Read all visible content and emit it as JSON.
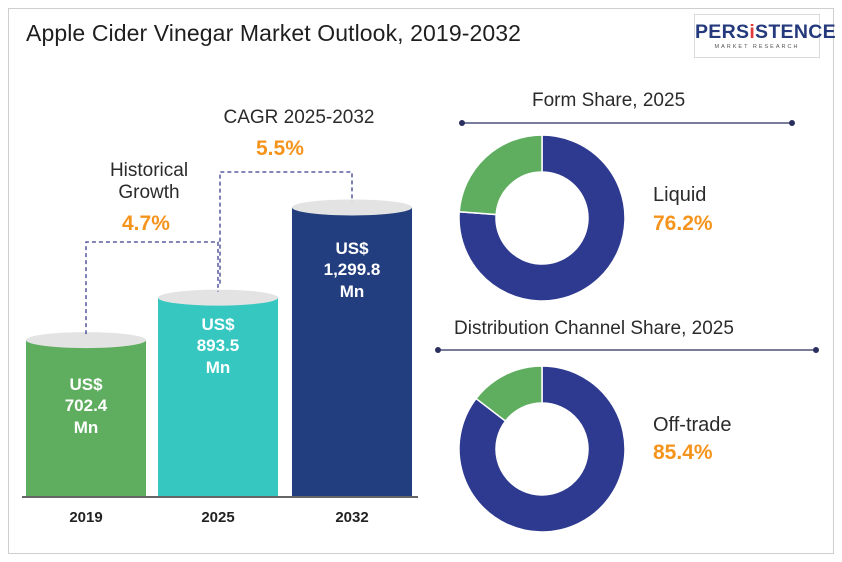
{
  "title": "Apple Cider Vinegar Market Outlook, 2019-2032",
  "logo": {
    "word_before": "PERS",
    "word_i": "i",
    "word_after": "STENCE",
    "sub": "MARKET RESEARCH"
  },
  "colors": {
    "bar_2019": "#5fad5f",
    "bar_2025": "#36c7c1",
    "bar_2032": "#233e7e",
    "accent": "#f5941d",
    "donut_main": "#2e3a8f",
    "donut_minor": "#5fad5f",
    "cap": "#e3e3e3"
  },
  "annotations": {
    "historical_label": "Historical\nGrowth",
    "historical_value": "4.7%",
    "cagr_label": "CAGR 2025-2032",
    "cagr_value": "5.5%"
  },
  "chart_data": [
    {
      "type": "bar",
      "title": "",
      "categories": [
        "2019",
        "2025",
        "2032"
      ],
      "values": [
        702.4,
        893.5,
        1299.8
      ],
      "data_labels": [
        "US$\n702.4\nMn",
        "US$\n893.5\nMn",
        "US$\n1,299.8\nMn"
      ],
      "ylabel": "",
      "xlabel": ""
    },
    {
      "type": "pie",
      "title": "Form Share, 2025",
      "main_label": "Liquid",
      "main_value_label": "76.2%",
      "values": [
        76.2,
        23.8
      ]
    },
    {
      "type": "pie",
      "title": "Distribution Channel Share, 2025",
      "main_label": "Off-trade",
      "main_value_label": "85.4%",
      "values": [
        85.4,
        14.6
      ]
    }
  ]
}
